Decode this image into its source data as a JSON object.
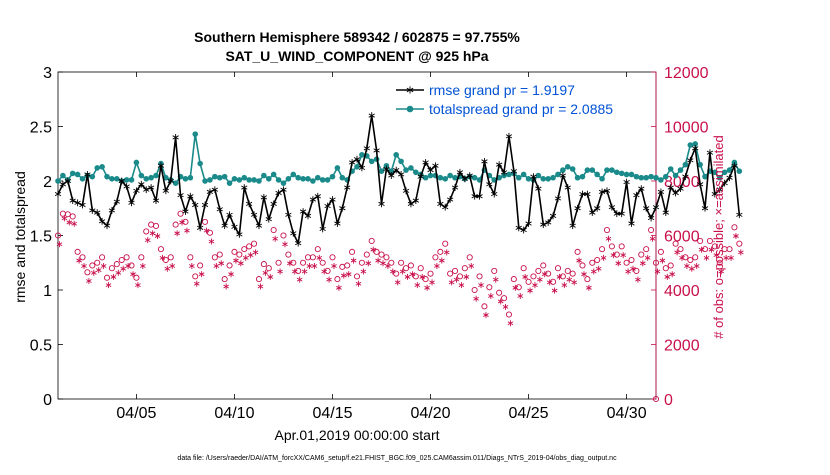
{
  "chart_data": {
    "type": "line",
    "title": "Southern Hemisphere 589342 / 602875 = 97.755%",
    "subtitle": "SAT_U_WIND_COMPONENT @ 925 hPa",
    "xlabel": "Apr.01,2019 00:00:00 start",
    "ylabel_left": "rmse and totalspread",
    "ylabel_right": "# of obs: o=possible; ×=assimilated",
    "ylim_left": [
      0,
      3
    ],
    "ylim_right": [
      0,
      12000
    ],
    "xlim_days": [
      1,
      31.5
    ],
    "left_ticks": [
      "0",
      "0.5",
      "1",
      "1.5",
      "2",
      "2.5",
      "3"
    ],
    "right_ticks": [
      "0",
      "2000",
      "4000",
      "6000",
      "8000",
      "10000",
      "12000"
    ],
    "x_ticks": [
      {
        "label": "04/05",
        "day": 5
      },
      {
        "label": "04/10",
        "day": 10
      },
      {
        "label": "04/15",
        "day": 15
      },
      {
        "label": "04/20",
        "day": 20
      },
      {
        "label": "04/25",
        "day": 25
      },
      {
        "label": "04/30",
        "day": 30
      }
    ],
    "footer": "data file: /Users/raeder/DAI/ATM_forcXX/CAM6_setup/f.e21.FHIST_BGC.f09_025.CAM6assim.011/Diags_NTrS_2019-04/obs_diag_output.nc",
    "colors": {
      "rmse": "#000000",
      "totalspread": "#1a8a8a",
      "obs": "#c8104b",
      "legend_text": "#0052d6"
    },
    "series": [
      {
        "name": "rmse",
        "legend": "rmse grand pr = 1.9197",
        "axis": "left",
        "values": [
          1.88,
          1.97,
          2.0,
          1.82,
          1.8,
          1.78,
          2.06,
          1.73,
          1.71,
          1.63,
          1.59,
          1.73,
          1.81,
          2.0,
          1.95,
          1.8,
          1.91,
          1.97,
          1.92,
          1.94,
          1.82,
          2.14,
          1.91,
          2.0,
          2.4,
          1.87,
          1.72,
          1.86,
          1.78,
          1.57,
          1.78,
          1.9,
          1.92,
          1.74,
          1.59,
          1.69,
          1.58,
          1.51,
          1.94,
          1.79,
          1.69,
          1.59,
          1.85,
          1.65,
          1.79,
          1.89,
          1.92,
          1.69,
          1.52,
          1.43,
          1.72,
          1.68,
          1.83,
          1.86,
          1.56,
          1.77,
          1.83,
          1.61,
          1.75,
          1.94,
          2.17,
          2.2,
          2.12,
          2.3,
          2.6,
          2.28,
          1.79,
          2.11,
          2.05,
          2.1,
          2.06,
          1.91,
          1.79,
          1.82,
          2.04,
          2.17,
          2.1,
          2.14,
          1.79,
          1.76,
          1.83,
          1.94,
          2.08,
          2.02,
          2.05,
          1.86,
          1.86,
          2.18,
          1.97,
          1.88,
          2.15,
          2.08,
          2.41,
          2.09,
          1.57,
          1.55,
          1.61,
          2.04,
          1.93,
          1.6,
          1.62,
          1.68,
          1.84,
          2.05,
          1.94,
          1.59,
          1.75,
          1.88,
          1.88,
          1.71,
          1.75,
          1.9,
          1.91,
          1.76,
          1.7,
          1.7,
          1.99,
          1.61,
          1.87,
          1.93,
          1.75,
          1.66,
          1.76,
          1.9,
          1.71,
          1.94,
          1.89,
          1.93,
          2.04,
          2.19,
          2.3,
          1.97,
          1.75,
          2.26,
          1.88,
          1.92,
          1.98,
          2.03,
          2.14,
          1.69
        ]
      },
      {
        "name": "totalspread",
        "legend": "totalspread grand pr = 2.0885",
        "axis": "left",
        "values": [
          2.0,
          2.05,
          2.01,
          2.07,
          2.06,
          2.02,
          2.05,
          2.04,
          2.12,
          2.13,
          2.04,
          2.02,
          2.02,
          2.0,
          2.01,
          2.01,
          2.17,
          2.05,
          2.02,
          2.03,
          2.05,
          2.16,
          2.03,
          2.01,
          1.98,
          2.04,
          2.02,
          2.03,
          2.43,
          2.16,
          2.0,
          2.01,
          2.04,
          2.03,
          2.04,
          1.98,
          2.02,
          2.01,
          2.03,
          2.01,
          2.01,
          2.0,
          2.05,
          2.02,
          2.06,
          2.01,
          1.98,
          2.02,
          2.06,
          2.03,
          2.02,
          2.02,
          2.0,
          2.03,
          2.01,
          2.01,
          2.04,
          2.12,
          2.03,
          2.01,
          2.09,
          2.13,
          2.24,
          2.23,
          2.18,
          2.2,
          2.09,
          2.14,
          2.09,
          2.24,
          2.18,
          2.1,
          2.12,
          2.08,
          2.06,
          2.03,
          2.05,
          2.05,
          2.03,
          2.02,
          2.05,
          2.03,
          2.04,
          2.02,
          2.04,
          2.03,
          2.01,
          2.1,
          2.05,
          2.01,
          2.03,
          2.05,
          2.06,
          2.07,
          2.03,
          2.06,
          2.02,
          2.01,
          2.05,
          2.02,
          2.02,
          2.03,
          2.06,
          2.1,
          2.13,
          2.11,
          2.03,
          2.04,
          2.1,
          2.1,
          2.06,
          2.02,
          2.1,
          2.1,
          2.08,
          2.07,
          2.06,
          2.06,
          2.04,
          2.03,
          2.03,
          2.04,
          2.03,
          2.01,
          2.04,
          2.11,
          2.05,
          2.1,
          2.15,
          2.33,
          2.34,
          2.15,
          2.04,
          2.09,
          2.08,
          2.03,
          2.08,
          2.1,
          2.17,
          2.09
        ]
      },
      {
        "name": "obs_possible",
        "marker": "circle",
        "axis": "right",
        "values": [
          6000,
          6800,
          6780,
          6700,
          5400,
          5200,
          4650,
          4900,
          5000,
          5200,
          4450,
          4800,
          4950,
          5100,
          5200,
          4900,
          4450,
          5200,
          6150,
          6400,
          6350,
          5500,
          5100,
          5200,
          6400,
          6800,
          6500,
          5200,
          4500,
          4900,
          6500,
          6100,
          5200,
          5300,
          4400,
          4900,
          5400,
          5300,
          5500,
          5600,
          5700,
          4400,
          4950,
          4800,
          6200,
          5000,
          6000,
          5300,
          5000,
          4700,
          5000,
          5200,
          5200,
          5500,
          5000,
          4700,
          5200,
          4400,
          4850,
          4900,
          5400,
          4500,
          5000,
          5300,
          5800,
          5400,
          5300,
          5200,
          5000,
          4600,
          5000,
          4800,
          4900,
          4500,
          4800,
          4400,
          4600,
          5200,
          5400,
          5700,
          4600,
          4700,
          4500,
          4800,
          5200,
          4000,
          4500,
          3400,
          4100,
          4700,
          3900,
          3700,
          3100,
          4400,
          4100,
          4800,
          4300,
          4500,
          4700,
          4900,
          4600,
          4300,
          4800,
          4500,
          4700,
          4600,
          5400,
          4900,
          4400,
          5000,
          5100,
          5500,
          6200,
          5600,
          5300,
          5600,
          5000,
          5100,
          4700,
          5300,
          5500,
          6200,
          5000,
          5400,
          4800,
          4900,
          5700,
          5500,
          5200,
          5100,
          5200,
          5800,
          5500,
          5800,
          5600,
          5000,
          5500,
          5500,
          6300,
          5700
        ]
      },
      {
        "name": "obs_assimilated",
        "marker": "asterisk",
        "axis": "right",
        "values": [
          5900,
          6850,
          6700,
          6650,
          5300,
          5100,
          4550,
          4850,
          4950,
          5100,
          4400,
          4700,
          4850,
          5000,
          5100,
          4800,
          4400,
          5100,
          6050,
          6300,
          6200,
          5400,
          5000,
          5100,
          6300,
          6700,
          6400,
          5100,
          4450,
          4800,
          6400,
          6000,
          5100,
          5200,
          4350,
          4800,
          5300,
          5200,
          5400,
          5500,
          5600,
          4350,
          4850,
          4700,
          6100,
          4900,
          5900,
          5200,
          4900,
          4600,
          4900,
          5100,
          5100,
          5400,
          4900,
          4600,
          5100,
          4300,
          4750,
          4800,
          5300,
          4450,
          4900,
          5200,
          5700,
          5300,
          5200,
          5100,
          4900,
          4500,
          4900,
          4700,
          4800,
          4400,
          4700,
          4300,
          4500,
          5100,
          5300,
          5600,
          4500,
          4600,
          4400,
          4700,
          5100,
          3900,
          4400,
          3300,
          4000,
          4600,
          3800,
          3600,
          3000,
          4300,
          4000,
          4700,
          4200,
          4400,
          4600,
          4800,
          4500,
          4200,
          4700,
          4400,
          4600,
          4500,
          5300,
          4800,
          4300,
          4900,
          5000,
          5400,
          6100,
          5500,
          5200,
          5500,
          4900,
          5000,
          4600,
          5200,
          5400,
          6100,
          4900,
          5300,
          4700,
          4800,
          5600,
          5400,
          5100,
          5000,
          5100,
          5700,
          5400,
          5700,
          5500,
          4900,
          5400,
          5400,
          6200,
          5600
        ]
      }
    ]
  }
}
